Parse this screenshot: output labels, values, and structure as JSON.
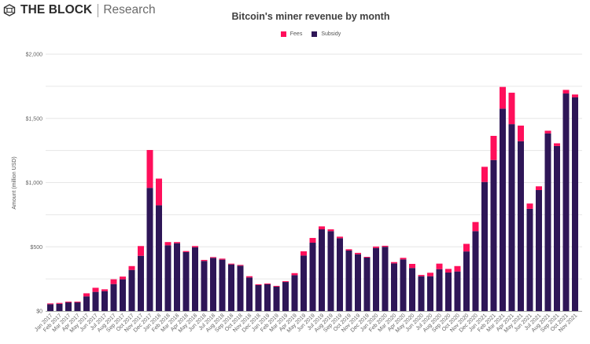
{
  "brand": {
    "name": "THE BLOCK",
    "sub": "Research",
    "logo_icon": "cube-logo-icon"
  },
  "colors": {
    "fees": "#ff0f5b",
    "subsidy": "#2e1657",
    "grid": "#e6e6e6",
    "axis": "#aaaaaa"
  },
  "chart_data": {
    "type": "bar",
    "stacked": true,
    "title": "Bitcoin's miner revenue by month",
    "xlabel": "",
    "ylabel": "Amount (million USD)",
    "ylim": [
      0,
      2000
    ],
    "yticks": [
      0,
      500,
      1000,
      1500,
      2000
    ],
    "ytick_labels": [
      "$0",
      "$500",
      "$1,000",
      "$1,500",
      "$2,000"
    ],
    "minor_gridlines": [
      250,
      750,
      1250,
      1750
    ],
    "grid": true,
    "legend": {
      "placement": "top-center",
      "entries": [
        "Fees",
        "Subsidy"
      ]
    },
    "categories": [
      "Jan 2017",
      "Feb 2017",
      "Mar 2017",
      "Apr 2017",
      "May 2017",
      "Jun 2017",
      "Jul 2017",
      "Aug 2017",
      "Sep 2017",
      "Oct 2017",
      "Nov 2017",
      "Dec 2017",
      "Jan 2018",
      "Feb 2018",
      "Mar 2018",
      "Apr 2018",
      "May 2018",
      "Jun 2018",
      "Jul 2018",
      "Aug 2018",
      "Sep 2018",
      "Oct 2018",
      "Nov 2018",
      "Dec 2018",
      "Jan 2019",
      "Feb 2019",
      "Mar 2019",
      "Apr 2019",
      "May 2019",
      "Jun 2019",
      "Jul 2019",
      "Aug 2019",
      "Sep 2019",
      "Oct 2019",
      "Nov 2019",
      "Dec 2019",
      "Jan 2020",
      "Feb 2020",
      "Mar 2020",
      "Apr 2020",
      "May 2020",
      "Jun 2020",
      "Jul 2020",
      "Aug 2020",
      "Sep 2020",
      "Oct 2020",
      "Nov 2020",
      "Dec 2020",
      "Jan 2021",
      "Feb 2021",
      "Mar 2021",
      "Apr 2021",
      "May 2021",
      "Jun 2021",
      "Jul 2021",
      "Aug 2021",
      "Sep 2021",
      "Oct 2021",
      "Nov 2021"
    ],
    "series": [
      {
        "name": "Subsidy",
        "color": "#2e1657",
        "values": [
          53,
          56,
          67,
          67,
          114,
          149,
          155,
          210,
          247,
          320,
          430,
          959,
          823,
          512,
          528,
          459,
          496,
          390,
          414,
          400,
          363,
          353,
          261,
          202,
          208,
          190,
          226,
          279,
          432,
          532,
          636,
          622,
          567,
          471,
          442,
          416,
          491,
          500,
          371,
          402,
          335,
          271,
          271,
          326,
          300,
          308,
          464,
          622,
          1005,
          1176,
          1576,
          1455,
          1322,
          796,
          942,
          1383,
          1285,
          1694,
          1664
        ]
      },
      {
        "name": "Fees",
        "color": "#ff0f5b",
        "values": [
          6,
          7,
          6,
          6,
          24,
          32,
          14,
          37,
          21,
          30,
          76,
          295,
          208,
          25,
          9,
          8,
          10,
          8,
          6,
          8,
          6,
          6,
          10,
          6,
          6,
          6,
          6,
          16,
          33,
          37,
          23,
          14,
          12,
          10,
          11,
          6,
          11,
          8,
          10,
          12,
          32,
          10,
          27,
          43,
          28,
          42,
          59,
          71,
          118,
          188,
          169,
          245,
          122,
          41,
          29,
          21,
          21,
          28,
          22
        ]
      }
    ]
  }
}
